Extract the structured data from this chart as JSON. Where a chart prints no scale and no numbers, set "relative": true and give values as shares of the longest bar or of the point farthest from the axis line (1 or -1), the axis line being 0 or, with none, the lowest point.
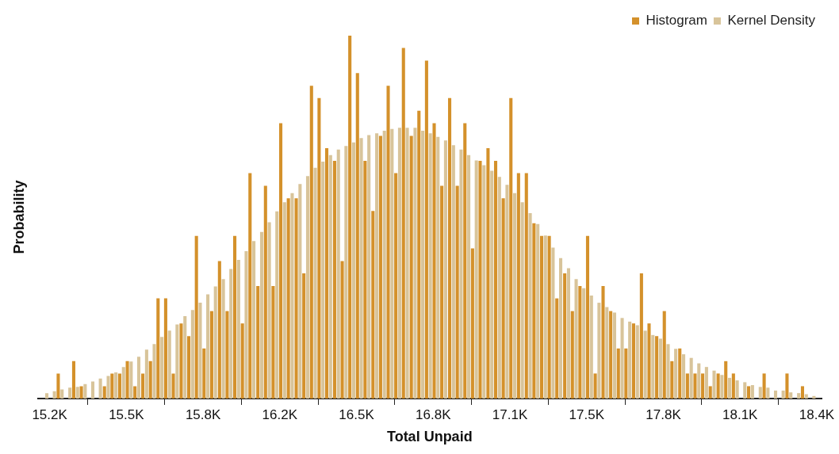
{
  "chart_data": {
    "type": "bar",
    "relative": true,
    "xlabel": "Total Unpaid",
    "ylabel": "Probability",
    "legend": "top right",
    "grid": false,
    "xlim": [
      15150,
      18440
    ],
    "xticks": [
      {
        "value": 15200,
        "label": "15.2K"
      },
      {
        "value": 15522,
        "label": "15.5K"
      },
      {
        "value": 15844,
        "label": "15.8K"
      },
      {
        "value": 16166,
        "label": "16.2K"
      },
      {
        "value": 16488,
        "label": "16.5K"
      },
      {
        "value": 16810,
        "label": "16.8K"
      },
      {
        "value": 17132,
        "label": "17.1K"
      },
      {
        "value": 17454,
        "label": "17.5K"
      },
      {
        "value": 17776,
        "label": "17.8K"
      },
      {
        "value": 18098,
        "label": "18.1K"
      },
      {
        "value": 18420,
        "label": "18.4K"
      }
    ],
    "x": [
      15180,
      15212,
      15244,
      15277,
      15309,
      15341,
      15373,
      15405,
      15438,
      15470,
      15502,
      15534,
      15566,
      15599,
      15631,
      15663,
      15695,
      15727,
      15760,
      15792,
      15824,
      15856,
      15888,
      15921,
      15953,
      15985,
      16017,
      16049,
      16082,
      16114,
      16146,
      16178,
      16210,
      16243,
      16275,
      16307,
      16339,
      16371,
      16404,
      16436,
      16468,
      16500,
      16532,
      16565,
      16597,
      16629,
      16661,
      16693,
      16726,
      16758,
      16790,
      16822,
      16854,
      16887,
      16919,
      16951,
      16983,
      17015,
      17048,
      17080,
      17112,
      17144,
      17176,
      17209,
      17241,
      17273,
      17305,
      17337,
      17370,
      17402,
      17434,
      17466,
      17498,
      17531,
      17563,
      17595,
      17627,
      17659,
      17692,
      17724,
      17756,
      17788,
      17820,
      17853,
      17885,
      17917,
      17949,
      17981,
      18014,
      18046,
      18078,
      18110,
      18142,
      18175,
      18207,
      18239,
      18271,
      18303,
      18336,
      18368,
      18400
    ],
    "series": [
      {
        "name": "Histogram",
        "color": "#d4912b",
        "values": [
          0,
          0,
          0.069,
          0,
          0.103,
          0.034,
          0,
          0,
          0.034,
          0.069,
          0.069,
          0.103,
          0.034,
          0.069,
          0.103,
          0.276,
          0.276,
          0.069,
          0.207,
          0.172,
          0.448,
          0.138,
          0.241,
          0.379,
          0.241,
          0.448,
          0.207,
          0.621,
          0.31,
          0.586,
          0.31,
          0.759,
          0.552,
          0.552,
          0.345,
          0.862,
          0.828,
          0.69,
          0.655,
          0.379,
          1,
          0.897,
          0.655,
          0.517,
          0.724,
          0.862,
          0.621,
          0.966,
          0.724,
          0.793,
          0.931,
          0.759,
          0.586,
          0.828,
          0.586,
          0.759,
          0.414,
          0.655,
          0.69,
          0.655,
          0.552,
          0.828,
          0.621,
          0.621,
          0.483,
          0.448,
          0.448,
          0.276,
          0.345,
          0.241,
          0.31,
          0.448,
          0.069,
          0.31,
          0.241,
          0.138,
          0.138,
          0.207,
          0.345,
          0.207,
          0.172,
          0.241,
          0.103,
          0.138,
          0.069,
          0.069,
          0.069,
          0.034,
          0.069,
          0.103,
          0.069,
          0,
          0.034,
          0,
          0.069,
          0,
          0,
          0.069,
          0,
          0.034,
          0
        ]
      },
      {
        "name": "Kernel Density",
        "color": "#d8c49a",
        "values": [
          0.015,
          0.02,
          0.025,
          0.03,
          0.032,
          0.04,
          0.047,
          0.055,
          0.062,
          0.072,
          0.087,
          0.102,
          0.115,
          0.135,
          0.15,
          0.17,
          0.187,
          0.204,
          0.227,
          0.244,
          0.264,
          0.287,
          0.309,
          0.329,
          0.357,
          0.382,
          0.406,
          0.434,
          0.459,
          0.486,
          0.516,
          0.541,
          0.566,
          0.591,
          0.613,
          0.636,
          0.653,
          0.671,
          0.686,
          0.696,
          0.706,
          0.718,
          0.726,
          0.731,
          0.738,
          0.743,
          0.746,
          0.746,
          0.746,
          0.738,
          0.731,
          0.721,
          0.711,
          0.698,
          0.686,
          0.671,
          0.656,
          0.643,
          0.628,
          0.611,
          0.589,
          0.566,
          0.541,
          0.511,
          0.481,
          0.449,
          0.416,
          0.387,
          0.359,
          0.329,
          0.304,
          0.284,
          0.264,
          0.252,
          0.237,
          0.222,
          0.212,
          0.202,
          0.187,
          0.175,
          0.165,
          0.15,
          0.137,
          0.122,
          0.112,
          0.097,
          0.087,
          0.077,
          0.065,
          0.057,
          0.05,
          0.045,
          0.037,
          0.032,
          0.03,
          0.022,
          0.022,
          0.017,
          0.015,
          0.012,
          0.007
        ]
      }
    ]
  }
}
